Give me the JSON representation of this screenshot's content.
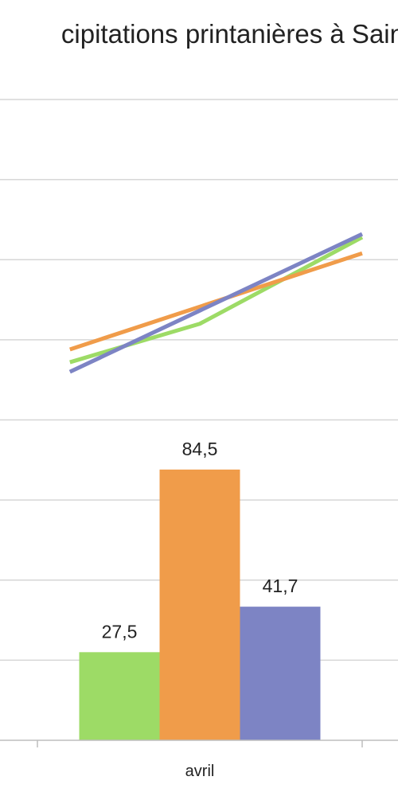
{
  "chart_data": {
    "type": "bar",
    "title": "cipitations printanières à Sain",
    "categories": [
      "avril"
    ],
    "series": [
      {
        "values": [
          27.5
        ],
        "value_labels": [
          "27,5"
        ],
        "color": "#9ddb66"
      },
      {
        "values": [
          84.5
        ],
        "value_labels": [
          "84,5"
        ],
        "color": "#f09c4a"
      },
      {
        "values": [
          41.7
        ],
        "value_labels": [
          "41,7"
        ],
        "color": "#7d84c4"
      }
    ],
    "trendlines": [
      {
        "color": "#9ddb66",
        "points": [
          [
            -0.4,
            118
          ],
          [
            -0.0,
            130
          ],
          [
            0.5,
            157
          ]
        ]
      },
      {
        "color": "#f09c4a",
        "points": [
          [
            -0.4,
            122
          ],
          [
            0.5,
            152
          ]
        ]
      },
      {
        "color": "#7d84c4",
        "points": [
          [
            -0.4,
            115
          ],
          [
            0.5,
            158
          ]
        ]
      }
    ],
    "ylim": [
      0,
      200
    ],
    "grid": true,
    "xlabel": "",
    "ylabel": ""
  }
}
